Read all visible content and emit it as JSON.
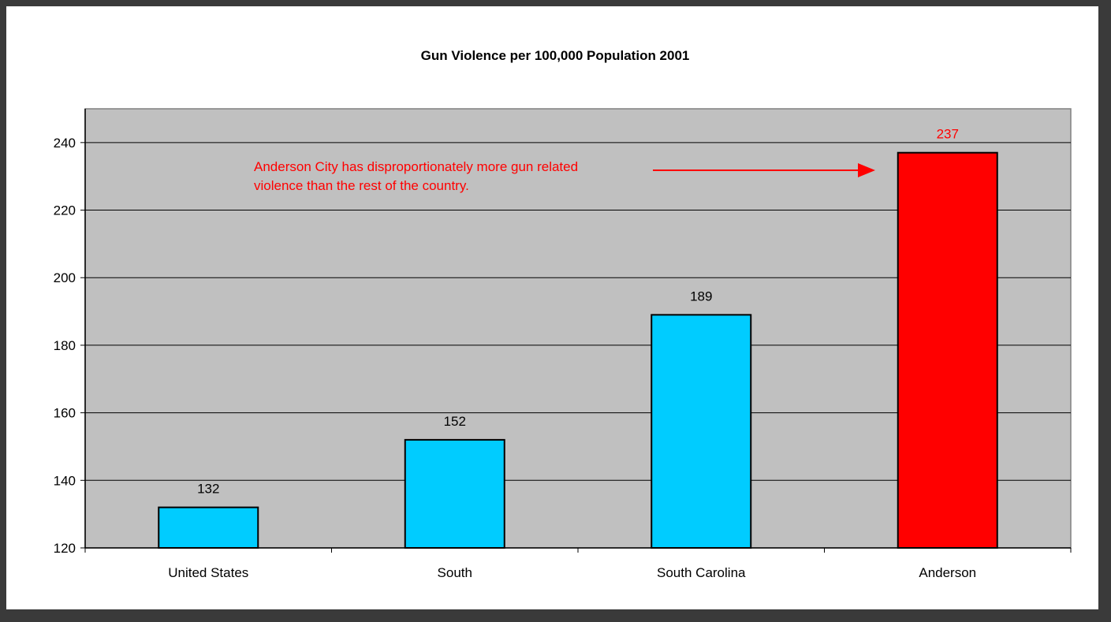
{
  "chart_data": {
    "type": "bar",
    "title": "Gun Violence per 100,000 Population 2001",
    "xlabel": "",
    "ylabel": "",
    "categories": [
      "United States",
      "South",
      "South Carolina",
      "Anderson"
    ],
    "values": [
      132,
      152,
      189,
      237
    ],
    "data_labels": [
      "132",
      "152",
      "189",
      "237"
    ],
    "ylim": [
      120,
      250
    ],
    "yticks": [
      120,
      140,
      160,
      180,
      200,
      220,
      240
    ],
    "grid": true,
    "legend": "none",
    "colors": {
      "default_bar": "#00ccff",
      "highlight_bar": "#ff0000",
      "highlight_index": 3,
      "plot_background": "#c0c0c0",
      "annotation": "#ff0000"
    },
    "annotation": {
      "lines": [
        "Anderson City has disproportionately more gun related",
        "violence than the rest of the country."
      ],
      "points_to_category": "Anderson"
    }
  }
}
